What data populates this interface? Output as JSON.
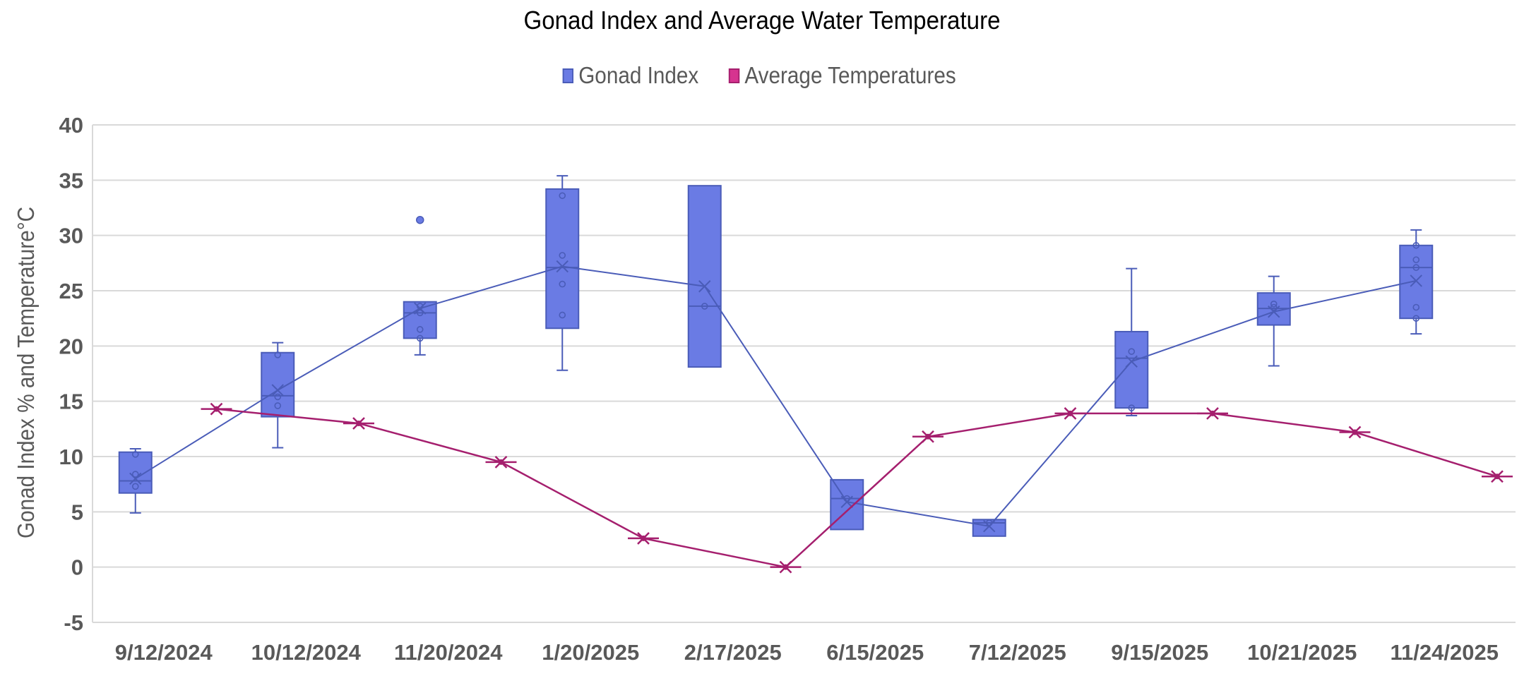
{
  "chart_data": {
    "type": "boxplot+line",
    "title": "Gonad Index and Average Water Temperature",
    "xlabel": "",
    "ylabel": "Gonad Index % and Temperature°C",
    "ylim": [
      -5,
      40
    ],
    "yticks": [
      -5,
      0,
      5,
      10,
      15,
      20,
      25,
      30,
      35,
      40
    ],
    "grid": true,
    "legend_position": "top-center",
    "categories": [
      "9/12/2024",
      "10/12/2024",
      "11/20/2024",
      "1/20/2025",
      "2/17/2025",
      "6/15/2025",
      "7/12/2025",
      "9/15/2025",
      "10/21/2025",
      "11/24/2025"
    ],
    "series": [
      {
        "name": "Gonad Index",
        "type": "box",
        "color": "#6a7be4",
        "stroke": "#4a5cb8",
        "boxes": [
          {
            "min": 4.9,
            "q1": 6.7,
            "median": 7.8,
            "q3": 10.4,
            "max": 10.7,
            "mean": 8.0,
            "points": [
              7.3,
              8.4,
              10.2
            ],
            "outliers": []
          },
          {
            "min": 10.8,
            "q1": 13.6,
            "median": 15.5,
            "q3": 19.4,
            "max": 20.3,
            "mean": 16.0,
            "points": [
              14.6,
              15.4,
              19.2
            ],
            "outliers": []
          },
          {
            "min": 19.2,
            "q1": 20.7,
            "median": 23.0,
            "q3": 24.0,
            "max": 24.0,
            "mean": 23.4,
            "points": [
              20.7,
              21.5,
              23.0,
              23.6
            ],
            "outliers": [
              31.4
            ]
          },
          {
            "min": 17.8,
            "q1": 21.6,
            "median": 27.1,
            "q3": 34.2,
            "max": 35.4,
            "mean": 27.2,
            "points": [
              22.8,
              25.6,
              28.2,
              33.6
            ],
            "outliers": []
          },
          {
            "min": 18.1,
            "q1": 18.1,
            "median": 23.6,
            "q3": 34.5,
            "max": 34.5,
            "mean": 25.4,
            "points": [
              23.6
            ],
            "outliers": []
          },
          {
            "min": 3.4,
            "q1": 3.4,
            "median": 6.2,
            "q3": 7.9,
            "max": 7.9,
            "mean": 5.9,
            "points": [
              6.2
            ],
            "outliers": []
          },
          {
            "min": 2.8,
            "q1": 2.8,
            "median": 4.0,
            "q3": 4.3,
            "max": 4.3,
            "mean": 3.7,
            "points": [
              4.0
            ],
            "outliers": []
          },
          {
            "min": 13.7,
            "q1": 14.4,
            "median": 18.9,
            "q3": 21.3,
            "max": 27.0,
            "mean": 18.6,
            "points": [
              14.4,
              19.5
            ],
            "outliers": []
          },
          {
            "min": 18.2,
            "q1": 21.9,
            "median": 23.4,
            "q3": 24.8,
            "max": 26.3,
            "mean": 23.1,
            "points": [
              23.5,
              23.8
            ],
            "outliers": []
          },
          {
            "min": 21.1,
            "q1": 22.5,
            "median": 27.1,
            "q3": 29.1,
            "max": 30.5,
            "mean": 25.9,
            "points": [
              22.5,
              23.5,
              27.1,
              27.8,
              29.1
            ],
            "outliers": []
          }
        ]
      },
      {
        "name": "Average Temperatures",
        "type": "line",
        "color": "#a51f6e",
        "legend_color": "#d6338f",
        "x_positions": [
          1.3,
          2.3,
          3.3,
          4.3,
          5.3,
          6.3,
          7.3,
          8.3,
          9.3,
          10.3
        ],
        "values": [
          14.3,
          13.0,
          9.5,
          2.6,
          0.0,
          11.8,
          13.9,
          13.9,
          12.2,
          8.2
        ]
      }
    ]
  }
}
